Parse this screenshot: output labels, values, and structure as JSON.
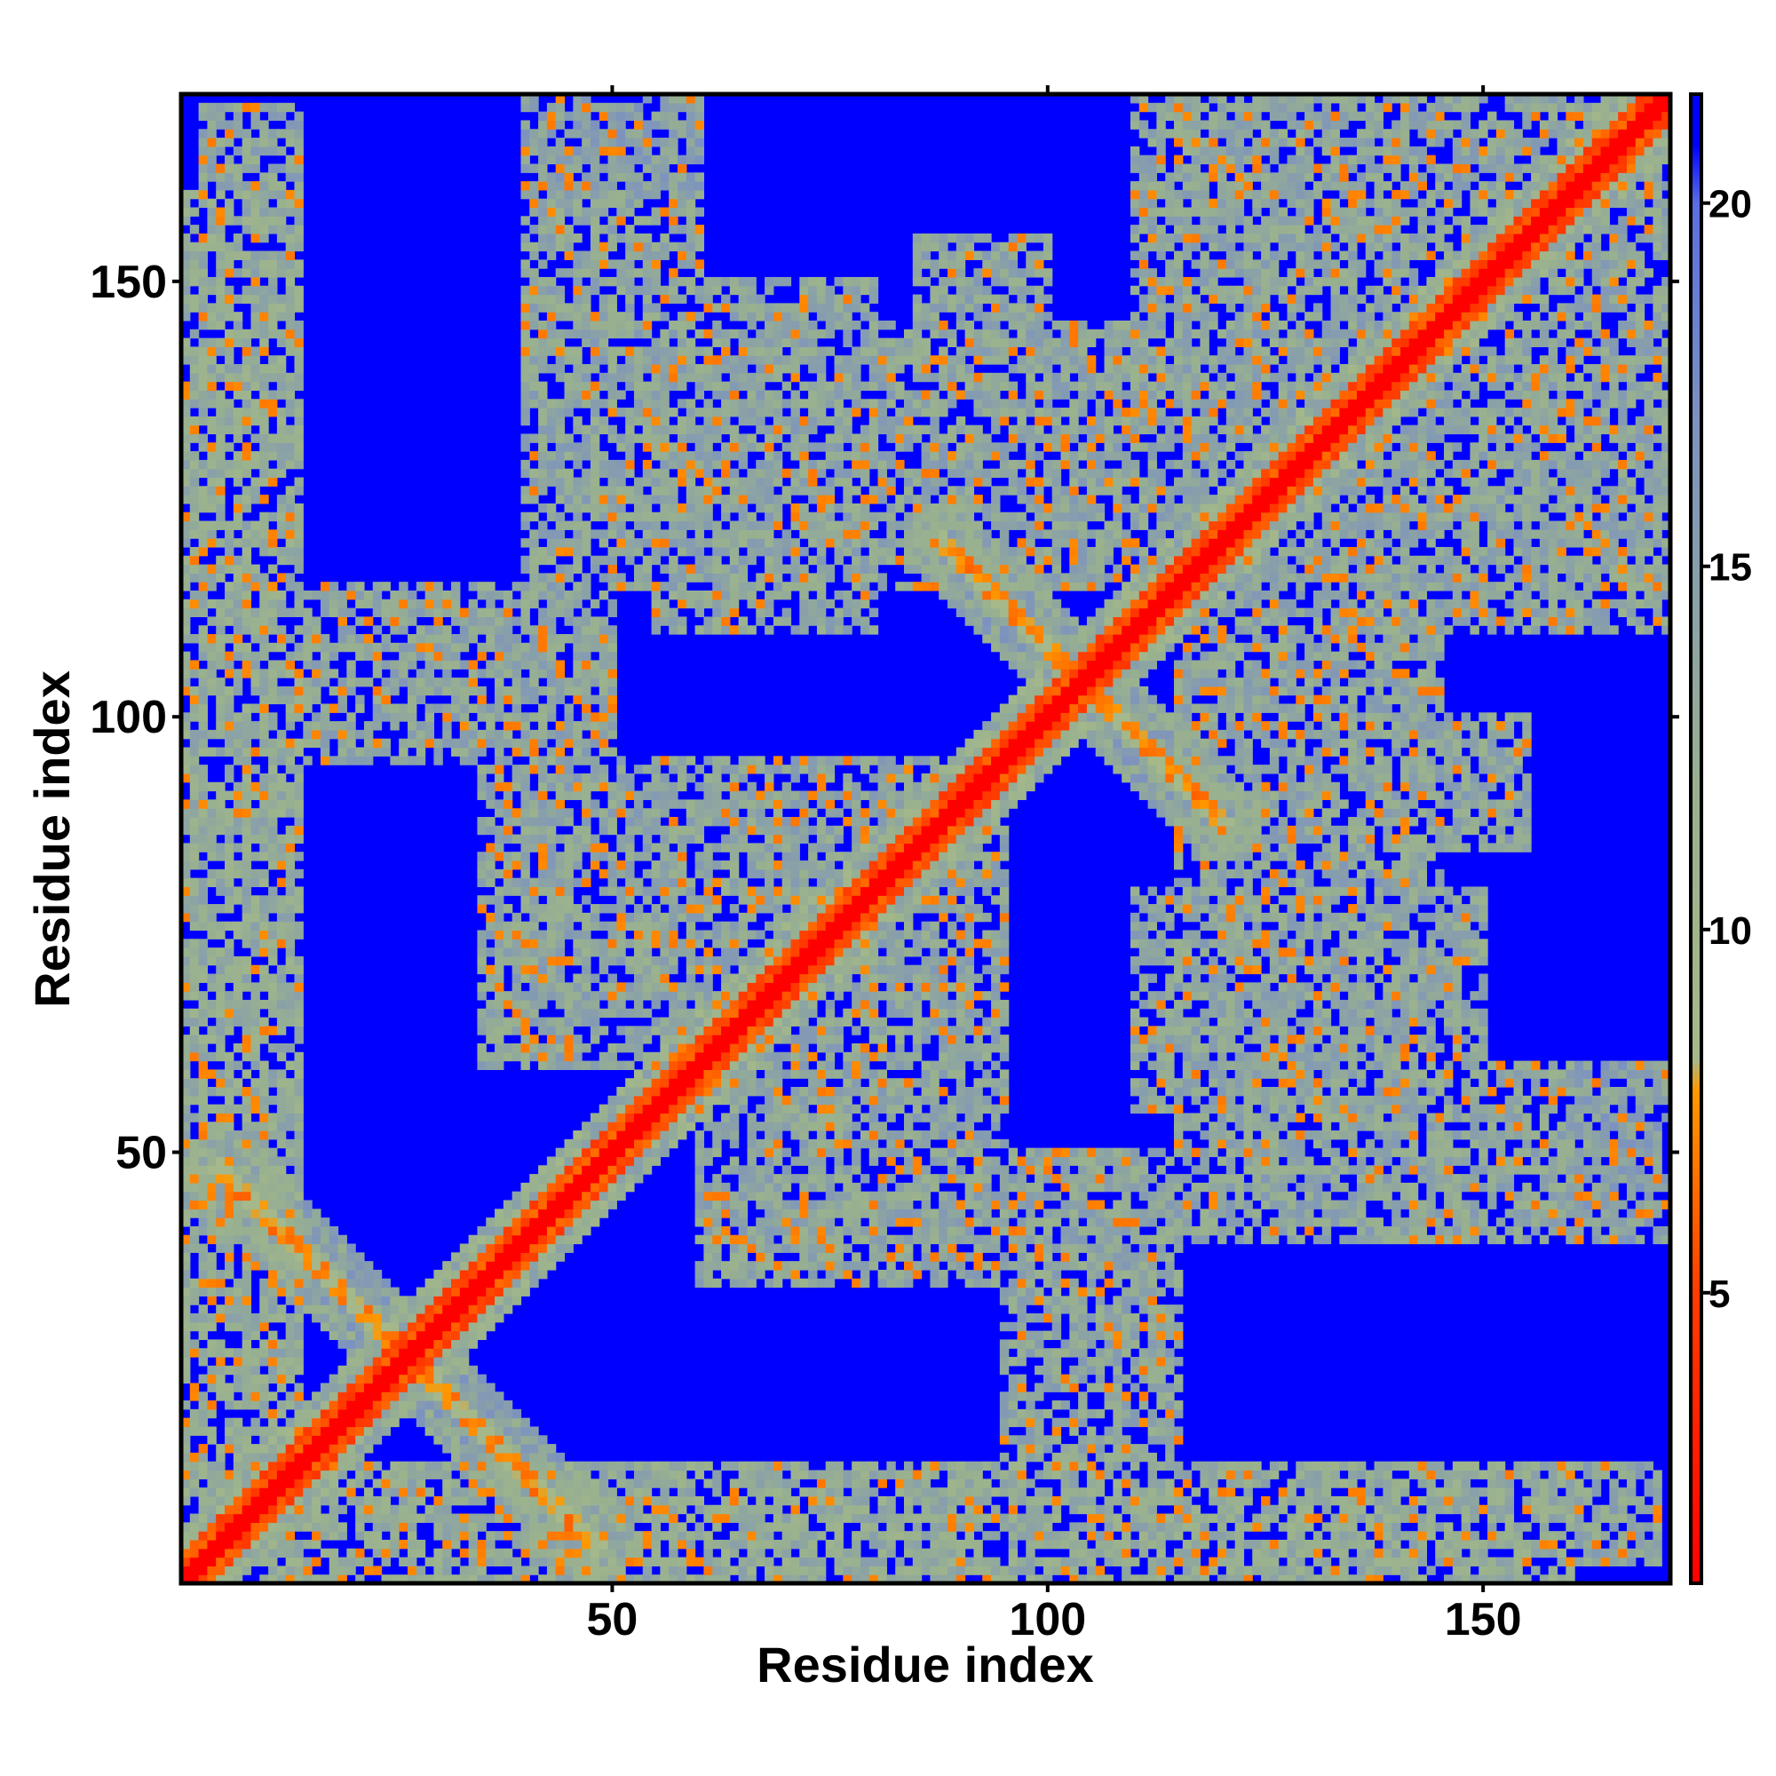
{
  "chart_data": {
    "type": "heatmap",
    "title": "",
    "xlabel": "Residue index",
    "ylabel": "Residue index",
    "xlim": [
      1,
      171
    ],
    "ylim": [
      1,
      171
    ],
    "n_residues": 171,
    "x_ticks": [
      50,
      100,
      150
    ],
    "y_ticks": [
      50,
      100,
      150
    ],
    "x_tick_labels": [
      "50",
      "100",
      "150"
    ],
    "y_tick_labels": [
      "50",
      "100",
      "150"
    ],
    "colorbar": {
      "range": [
        1,
        21.5
      ],
      "ticks": [
        5,
        10,
        15,
        20
      ],
      "tick_labels": [
        "5",
        "10",
        "15",
        "20"
      ],
      "stops": [
        {
          "value": 1,
          "color": "#ff0000"
        },
        {
          "value": 5,
          "color": "#ff3c00"
        },
        {
          "value": 7.8,
          "color": "#ff9900"
        },
        {
          "value": 8.2,
          "color": "#a6b98a"
        },
        {
          "value": 12,
          "color": "#98b090"
        },
        {
          "value": 17,
          "color": "#7c92c0"
        },
        {
          "value": 20,
          "color": "#5a6ee0"
        },
        {
          "value": 20.8,
          "color": "#0000ff"
        }
      ]
    },
    "background_value": 21,
    "background_color": "#0000ff",
    "structure": {
      "diagonal": {
        "core_value": 1,
        "near_value": 4.5,
        "shell_value": 12
      },
      "crossing_bands": [
        {
          "description": "anti-diagonal cross near residue 26",
          "a": [
            5,
            48
          ],
          "b": [
            48,
            5
          ],
          "value": 7
        },
        {
          "description": "anti-diagonal cross near residue 104",
          "a": [
            88,
            120
          ],
          "b": [
            120,
            88
          ],
          "value": 7
        }
      ],
      "contact_regions": [
        {
          "x": [
            1,
            14
          ],
          "y": [
            10,
            160
          ],
          "value": 11
        },
        {
          "x": [
            20,
            50
          ],
          "y": [
            95,
            115
          ],
          "value": 12
        },
        {
          "x": [
            40,
            60
          ],
          "y": [
            125,
            160
          ],
          "value": 12
        },
        {
          "x": [
            55,
            80
          ],
          "y": [
            110,
            150
          ],
          "value": 12
        },
        {
          "x": [
            80,
            110
          ],
          "y": [
            115,
            145
          ],
          "value": 12
        },
        {
          "x": [
            35,
            60
          ],
          "y": [
            60,
            95
          ],
          "value": 12
        },
        {
          "x": [
            60,
            95
          ],
          "y": [
            40,
            95
          ],
          "value": 12
        },
        {
          "x": [
            95,
            115
          ],
          "y": [
            15,
            45
          ],
          "value": 12
        },
        {
          "x": [
            115,
            140
          ],
          "y": [
            40,
            75
          ],
          "value": 12
        },
        {
          "x": [
            140,
            171
          ],
          "y": [
            40,
            60
          ],
          "value": 13
        },
        {
          "x": [
            115,
            171
          ],
          "y": [
            110,
            165
          ],
          "value": 12
        },
        {
          "x": [
            50,
            170
          ],
          "y": [
            3,
            14
          ],
          "value": 12
        },
        {
          "x": [
            120,
            155
          ],
          "y": [
            85,
            100
          ],
          "value": 12
        }
      ]
    }
  }
}
